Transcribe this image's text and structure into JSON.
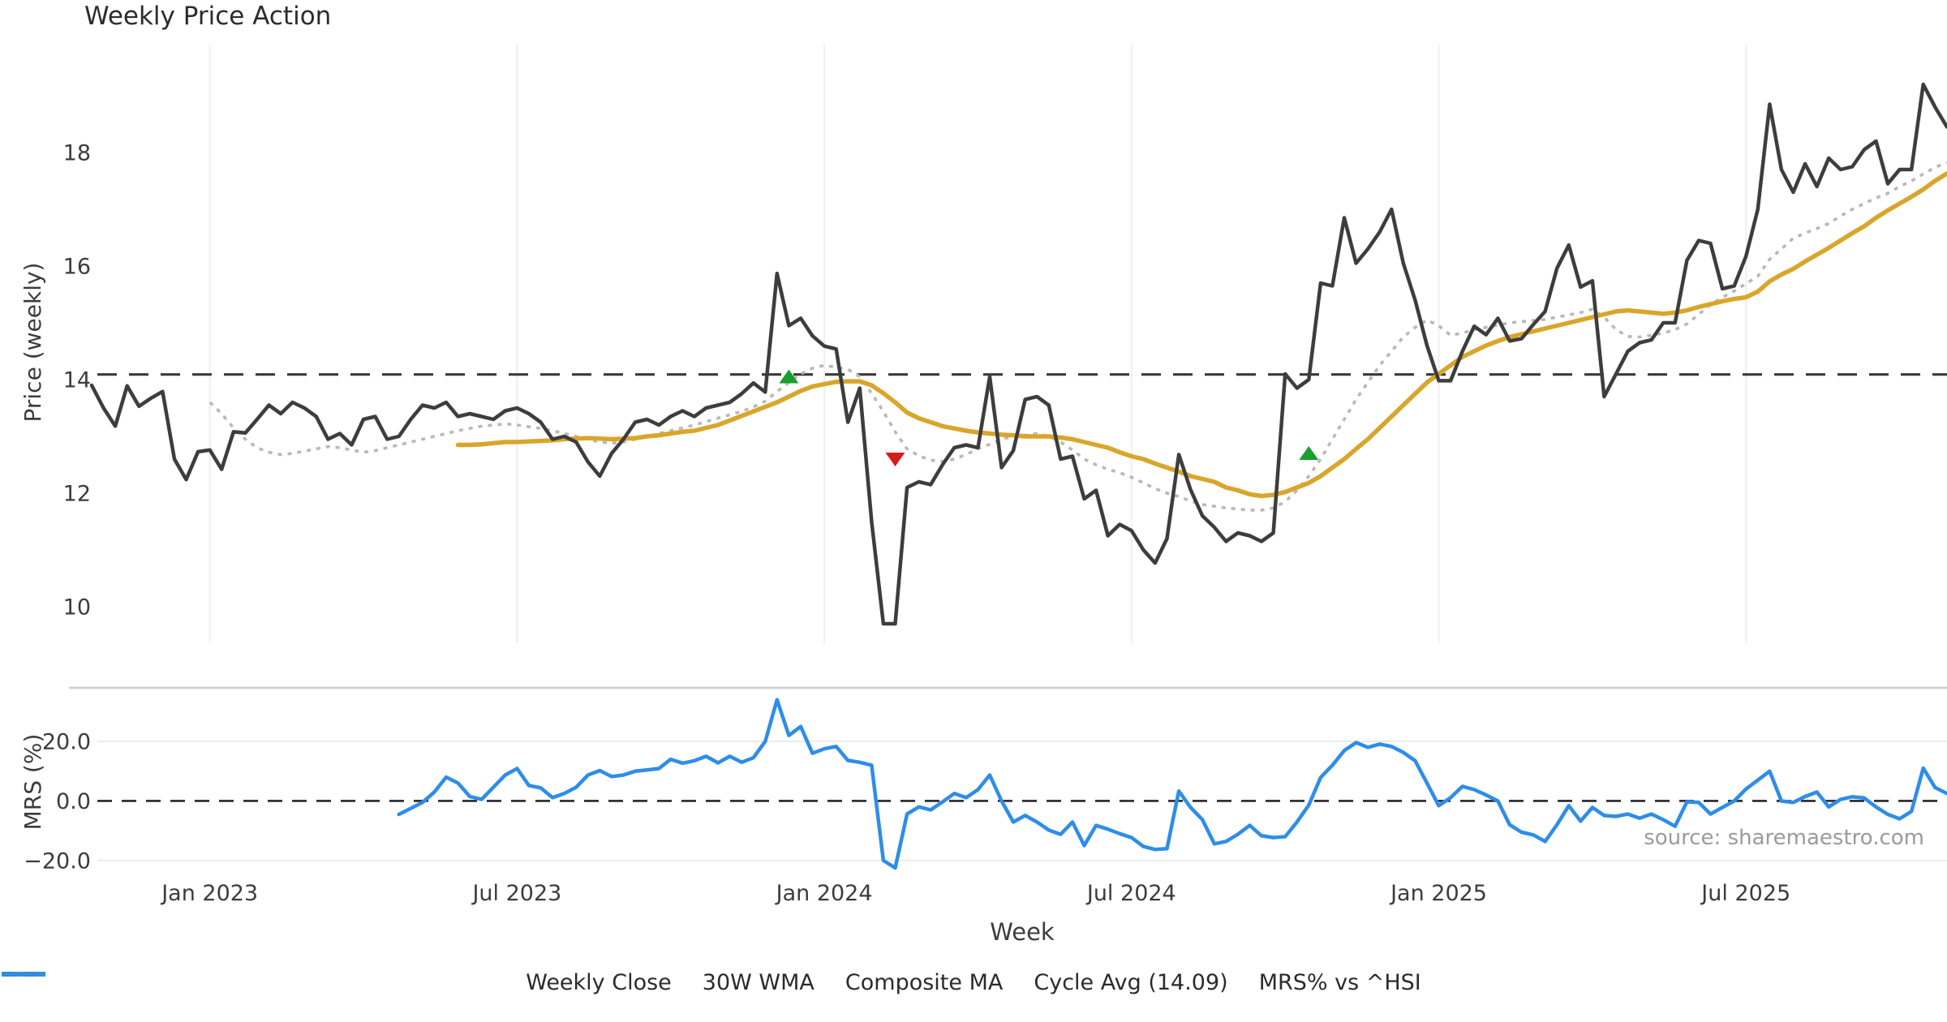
{
  "title": "Weekly Price Action",
  "source_text": "source: sharemaestro.com",
  "colors": {
    "close": "#3d3d3d",
    "wma": "#d9a62b",
    "composite": "#b9b9b9",
    "cycle_avg": "#3a3a3a",
    "mrs": "#2e8de8",
    "marker_up": "#17a02b",
    "marker_down": "#d21e1c",
    "grid_v": "#efefef",
    "grid_h": "#ececec",
    "spine": "#c9ced6",
    "zero_line": "#26262b",
    "tick_text": "#3c3c3c",
    "source_color": "#9b9b9b"
  },
  "legend": [
    {
      "label": "Weekly Close",
      "style": "solid",
      "color_key": "close"
    },
    {
      "label": "30W WMA",
      "style": "solid",
      "color_key": "wma"
    },
    {
      "label": "Composite MA",
      "style": "dotted",
      "color_key": "composite"
    },
    {
      "label": "Cycle Avg (14.09)",
      "style": "dashed",
      "color_key": "cycle_avg"
    },
    {
      "label": "MRS% vs ^HSI",
      "style": "solid",
      "color_key": "mrs"
    }
  ],
  "chart_data": [
    {
      "type": "line",
      "panel": "price",
      "title": "Weekly Price Action",
      "ylabel": "Price (weekly)",
      "xlabel": "Week",
      "ylim": [
        9.4,
        19.9
      ],
      "yticks": [
        10,
        12,
        14,
        16,
        18
      ],
      "grid": "vertical-only",
      "cycle_avg": 14.09,
      "x_axis": {
        "tick_labels": [
          "Jan 2023",
          "Jul 2023",
          "Jan 2024",
          "Jul 2024",
          "Jan 2025",
          "Jul 2025"
        ],
        "tick_weeks": [
          10,
          36,
          62,
          88,
          114,
          140
        ],
        "weeks_total": 158
      },
      "series": [
        {
          "name": "Weekly Close",
          "start_week": 0,
          "values": [
            13.9,
            13.5,
            13.18,
            13.89,
            13.53,
            13.67,
            13.79,
            12.6,
            12.24,
            12.73,
            12.76,
            12.42,
            13.08,
            13.06,
            13.3,
            13.55,
            13.4,
            13.6,
            13.5,
            13.35,
            12.95,
            13.05,
            12.85,
            13.3,
            13.35,
            12.95,
            13.0,
            13.3,
            13.55,
            13.5,
            13.6,
            13.35,
            13.4,
            13.35,
            13.3,
            13.45,
            13.5,
            13.4,
            13.25,
            12.95,
            13.0,
            12.9,
            12.55,
            12.3,
            12.7,
            12.95,
            13.25,
            13.3,
            13.2,
            13.35,
            13.45,
            13.35,
            13.5,
            13.55,
            13.6,
            13.75,
            13.94,
            13.78,
            15.87,
            14.95,
            15.08,
            14.77,
            14.59,
            14.54,
            13.25,
            13.85,
            11.5,
            9.7,
            9.7,
            12.1,
            12.2,
            12.15,
            12.5,
            12.8,
            12.85,
            12.8,
            14.05,
            12.45,
            12.75,
            13.65,
            13.7,
            13.55,
            12.6,
            12.65,
            11.9,
            12.05,
            11.25,
            11.45,
            11.34,
            11.0,
            10.77,
            11.2,
            12.68,
            12.06,
            11.6,
            11.4,
            11.15,
            11.3,
            11.25,
            11.15,
            11.3,
            14.1,
            13.85,
            14.0,
            15.7,
            15.65,
            16.85,
            16.05,
            16.3,
            16.6,
            17.0,
            16.05,
            15.4,
            14.6,
            13.98,
            13.98,
            14.5,
            14.94,
            14.79,
            15.08,
            14.68,
            14.72,
            14.97,
            15.2,
            15.96,
            16.37,
            15.63,
            15.74,
            13.7,
            14.1,
            14.5,
            14.65,
            14.7,
            15.0,
            15.0,
            16.1,
            16.45,
            16.4,
            15.6,
            15.65,
            16.17,
            17.0,
            18.85,
            17.7,
            17.3,
            17.8,
            17.4,
            17.9,
            17.7,
            17.75,
            18.05,
            18.2,
            17.45,
            17.7,
            17.7,
            19.2,
            18.8,
            18.45
          ]
        },
        {
          "name": "30W WMA",
          "start_week": 31,
          "values": [
            12.85,
            12.85,
            12.86,
            12.88,
            12.9,
            12.9,
            12.91,
            12.92,
            12.93,
            12.95,
            12.96,
            12.97,
            12.96,
            12.95,
            12.96,
            12.97,
            13.0,
            13.02,
            13.05,
            13.08,
            13.1,
            13.15,
            13.2,
            13.28,
            13.36,
            13.44,
            13.52,
            13.6,
            13.7,
            13.8,
            13.88,
            13.92,
            13.96,
            13.97,
            13.97,
            13.9,
            13.76,
            13.6,
            13.42,
            13.32,
            13.25,
            13.18,
            13.14,
            13.1,
            13.07,
            13.05,
            13.03,
            13.02,
            13.0,
            13.0,
            13.0,
            12.98,
            12.95,
            12.9,
            12.85,
            12.8,
            12.72,
            12.65,
            12.6,
            12.52,
            12.45,
            12.38,
            12.3,
            12.25,
            12.2,
            12.1,
            12.05,
            11.98,
            11.95,
            11.97,
            12.02,
            12.1,
            12.18,
            12.3,
            12.45,
            12.6,
            12.78,
            12.95,
            13.15,
            13.35,
            13.55,
            13.75,
            13.95,
            14.1,
            14.25,
            14.4,
            14.5,
            14.6,
            14.68,
            14.75,
            14.8,
            14.85,
            14.9,
            14.95,
            15.0,
            15.05,
            15.1,
            15.15,
            15.2,
            15.22,
            15.2,
            15.18,
            15.16,
            15.18,
            15.22,
            15.28,
            15.33,
            15.38,
            15.42,
            15.45,
            15.55,
            15.73,
            15.85,
            15.95,
            16.08,
            16.2,
            16.32,
            16.45,
            16.58,
            16.7,
            16.85,
            16.98,
            17.1,
            17.22,
            17.35,
            17.5,
            17.63
          ]
        },
        {
          "name": "Composite MA",
          "start_week": 10,
          "values": [
            13.6,
            13.4,
            13.15,
            12.95,
            12.8,
            12.72,
            12.68,
            12.7,
            12.74,
            12.78,
            12.82,
            12.8,
            12.76,
            12.72,
            12.75,
            12.8,
            12.85,
            12.9,
            12.95,
            13.0,
            13.05,
            13.1,
            13.14,
            13.18,
            13.2,
            13.22,
            13.2,
            13.17,
            13.14,
            13.1,
            13.05,
            13.0,
            12.95,
            12.9,
            12.88,
            12.9,
            12.95,
            13.0,
            13.05,
            13.1,
            13.15,
            13.2,
            13.26,
            13.32,
            13.38,
            13.44,
            13.52,
            13.62,
            13.79,
            13.95,
            14.1,
            14.2,
            14.25,
            14.22,
            14.18,
            14.05,
            13.76,
            13.44,
            13.08,
            12.78,
            12.66,
            12.58,
            12.56,
            12.6,
            12.68,
            12.78,
            12.86,
            12.95,
            13.0,
            13.02,
            13.05,
            13.0,
            12.9,
            12.76,
            12.6,
            12.5,
            12.42,
            12.36,
            12.28,
            12.18,
            12.08,
            12.0,
            11.94,
            11.86,
            11.8,
            11.77,
            11.74,
            11.72,
            11.7,
            11.7,
            11.74,
            11.85,
            12.05,
            12.3,
            12.6,
            12.95,
            13.3,
            13.65,
            13.95,
            14.25,
            14.5,
            14.75,
            14.92,
            15.05,
            14.95,
            14.78,
            14.82,
            14.88,
            14.92,
            14.96,
            15.0,
            15.02,
            15.04,
            15.06,
            15.1,
            15.14,
            15.18,
            15.24,
            15.1,
            14.88,
            14.76,
            14.75,
            14.78,
            14.82,
            14.88,
            14.98,
            15.15,
            15.32,
            15.45,
            15.56,
            15.69,
            15.82,
            16.12,
            16.3,
            16.49,
            16.58,
            16.66,
            16.75,
            16.88,
            17.0,
            17.1,
            17.2,
            17.28,
            17.4,
            17.5,
            17.62,
            17.74,
            17.82
          ]
        }
      ],
      "markers": [
        {
          "week": 59,
          "value": 14.05,
          "dir": "up"
        },
        {
          "week": 68,
          "value": 12.6,
          "dir": "down"
        },
        {
          "week": 103,
          "value": 12.7,
          "dir": "up"
        }
      ]
    },
    {
      "type": "line",
      "panel": "mrs",
      "ylabel": "MRS (%)",
      "ylim": [
        -25,
        38
      ],
      "yticks": [
        -20,
        0,
        20
      ],
      "ytick_labels": [
        "−20.0",
        "0.0",
        "20.0"
      ],
      "zero_line": 0,
      "series": [
        {
          "name": "MRS% vs ^HSI",
          "start_week": 26,
          "values": [
            -4.5,
            -2.5,
            -0.5,
            3,
            8,
            6,
            1.5,
            0.5,
            4.6,
            8.7,
            10.9,
            5.2,
            4.4,
            1.1,
            2.5,
            4.6,
            8.7,
            10.2,
            8.2,
            8.7,
            10,
            10.4,
            10.9,
            14,
            12.7,
            13.5,
            15,
            12.8,
            15,
            13,
            14.5,
            20,
            34,
            22,
            25,
            16,
            17.5,
            18.3,
            13.6,
            13,
            12,
            -20,
            -22.5,
            -4.4,
            -2,
            -3,
            -0.3,
            2.5,
            1.1,
            3.8,
            8.7,
            0,
            -7.1,
            -4.9,
            -7.1,
            -9.8,
            -11.2,
            -7.1,
            -15,
            -8.2,
            -9.5,
            -11,
            -12.3,
            -15.3,
            -16.3,
            -16,
            3.3,
            -2.2,
            -6.3,
            -14.4,
            -13.6,
            -11.2,
            -8.2,
            -11.7,
            -12.3,
            -12,
            -7.1,
            -1.4,
            7.9,
            12,
            16.9,
            19.6,
            18,
            19.1,
            18.3,
            16.3,
            13.5,
            6,
            -1.6,
            1.1,
            4.9,
            3.8,
            2,
            0,
            -8,
            -10.5,
            -11.4,
            -13.6,
            -8,
            -1.6,
            -6.8,
            -2.2,
            -4.9,
            -5.2,
            -4.4,
            -5.8,
            -4.4,
            -6.3,
            -8.5,
            -0.3,
            -0.5,
            -4.4,
            -2.2,
            0,
            4,
            7,
            10,
            0,
            -0.5,
            1.5,
            3,
            -2,
            0.5,
            1.4,
            1,
            -2,
            -4.5,
            -6,
            -3.5,
            11,
            4.5,
            2.5
          ]
        }
      ]
    }
  ]
}
